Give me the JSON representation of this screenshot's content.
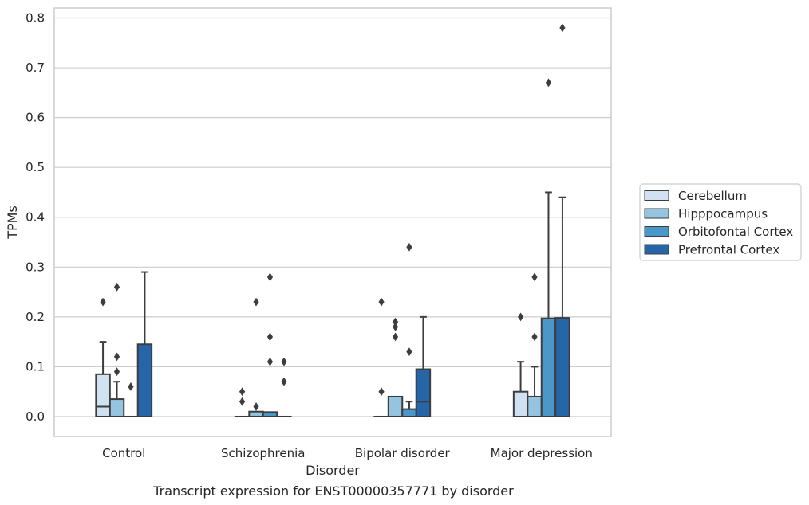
{
  "chart_data": {
    "type": "box",
    "title": "",
    "caption": "Transcript expression for ENST00000357771 by disorder",
    "xlabel": "Disorder",
    "ylabel": "TPMs",
    "ylim": [
      -0.04,
      0.82
    ],
    "yticks": [
      "0.0",
      "0.1",
      "0.2",
      "0.3",
      "0.4",
      "0.5",
      "0.6",
      "0.7",
      "0.8"
    ],
    "grid": true,
    "legend_position": "right",
    "categories": [
      "Control",
      "Schizophrenia",
      "Bipolar disorder",
      "Major depression"
    ],
    "series": [
      {
        "name": "Cerebellum",
        "color": "#d0e1f2",
        "boxes": [
          {
            "q1": 0.0,
            "median": 0.02,
            "q3": 0.085,
            "whisker_low": 0.0,
            "whisker_high": 0.15,
            "outliers": [
              0.23
            ]
          },
          {
            "q1": 0.0,
            "median": 0.0,
            "q3": 0.0,
            "whisker_low": 0.0,
            "whisker_high": 0.0,
            "outliers": [
              0.05,
              0.03
            ]
          },
          {
            "q1": 0.0,
            "median": 0.0,
            "q3": 0.0,
            "whisker_low": 0.0,
            "whisker_high": 0.0,
            "outliers": [
              0.23,
              0.05
            ]
          },
          {
            "q1": 0.0,
            "median": 0.0,
            "q3": 0.05,
            "whisker_low": 0.0,
            "whisker_high": 0.11,
            "outliers": [
              0.2
            ]
          }
        ]
      },
      {
        "name": "Hipppocampus",
        "color": "#94c4df",
        "boxes": [
          {
            "q1": 0.0,
            "median": 0.0,
            "q3": 0.035,
            "whisker_low": 0.0,
            "whisker_high": 0.07,
            "outliers": [
              0.26,
              0.12,
              0.09
            ]
          },
          {
            "q1": 0.0,
            "median": 0.0,
            "q3": 0.01,
            "whisker_low": 0.0,
            "whisker_high": 0.01,
            "outliers": [
              0.23,
              0.02
            ]
          },
          {
            "q1": 0.0,
            "median": 0.0,
            "q3": 0.04,
            "whisker_low": 0.0,
            "whisker_high": 0.04,
            "outliers": [
              0.19,
              0.18,
              0.16
            ]
          },
          {
            "q1": 0.0,
            "median": 0.0,
            "q3": 0.04,
            "whisker_low": 0.0,
            "whisker_high": 0.1,
            "outliers": [
              0.28,
              0.16
            ]
          }
        ]
      },
      {
        "name": "Orbitofontal Cortex",
        "color": "#4a98c9",
        "boxes": [
          {
            "q1": 0.0,
            "median": 0.0,
            "q3": 0.0,
            "whisker_low": 0.0,
            "whisker_high": 0.0,
            "outliers": [
              0.06
            ]
          },
          {
            "q1": 0.0,
            "median": 0.0,
            "q3": 0.009,
            "whisker_low": 0.0,
            "whisker_high": 0.009,
            "outliers": [
              0.28,
              0.16,
              0.11
            ]
          },
          {
            "q1": 0.0,
            "median": 0.0,
            "q3": 0.015,
            "whisker_low": 0.0,
            "whisker_high": 0.03,
            "outliers": [
              0.34,
              0.13
            ]
          },
          {
            "q1": 0.0,
            "median": 0.0,
            "q3": 0.197,
            "whisker_low": 0.0,
            "whisker_high": 0.45,
            "outliers": [
              0.67
            ]
          }
        ]
      },
      {
        "name": "Prefrontal Cortex",
        "color": "#2565a8",
        "boxes": [
          {
            "q1": 0.0,
            "median": 0.0,
            "q3": 0.145,
            "whisker_low": 0.0,
            "whisker_high": 0.29,
            "outliers": []
          },
          {
            "q1": 0.0,
            "median": 0.0,
            "q3": 0.0,
            "whisker_low": 0.0,
            "whisker_high": 0.0,
            "outliers": [
              0.11,
              0.07
            ]
          },
          {
            "q1": 0.0,
            "median": 0.03,
            "q3": 0.095,
            "whisker_low": 0.0,
            "whisker_high": 0.2,
            "outliers": []
          },
          {
            "q1": 0.0,
            "median": 0.0,
            "q3": 0.198,
            "whisker_low": 0.0,
            "whisker_high": 0.44,
            "outliers": [
              0.78
            ]
          }
        ]
      }
    ]
  }
}
